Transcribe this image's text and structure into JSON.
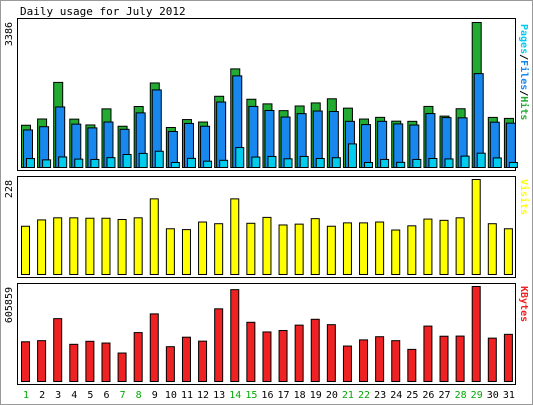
{
  "chart_data": [
    {
      "type": "bar",
      "title": "Daily usage for July 2012",
      "categories": [
        "1",
        "2",
        "3",
        "4",
        "5",
        "6",
        "7",
        "8",
        "9",
        "10",
        "11",
        "12",
        "13",
        "14",
        "15",
        "16",
        "17",
        "18",
        "19",
        "20",
        "21",
        "22",
        "23",
        "24",
        "25",
        "26",
        "27",
        "28",
        "29",
        "30",
        "31"
      ],
      "weekend_days": [
        "1",
        "7",
        "8",
        "14",
        "15",
        "21",
        "22",
        "28",
        "29"
      ],
      "y_tick_label": "3386",
      "ylim": [
        0,
        3386
      ],
      "right_label": {
        "parts": [
          "Pages",
          "Files",
          "Hits"
        ],
        "separator": "/"
      },
      "series": [
        {
          "name": "Hits",
          "color": "#22aa33",
          "values": [
            1003,
            1148,
            1997,
            1145,
            1010,
            1383,
            980,
            1438,
            1984,
            951,
            1135,
            1078,
            1675,
            2310,
            1606,
            1499,
            1342,
            1450,
            1521,
            1617,
            1400,
            1147,
            1186,
            1098,
            1094,
            1440,
            1215,
            1386,
            3386,
            1185,
            1162
          ]
        },
        {
          "name": "Files",
          "color": "#1888ee",
          "values": [
            894,
            969,
            1427,
            1029,
            942,
            1078,
            909,
            1290,
            1822,
            858,
            1045,
            980,
            1542,
            2148,
            1440,
            1345,
            1193,
            1272,
            1333,
            1322,
            1094,
            1018,
            1094,
            1034,
            1008,
            1274,
            1180,
            1175,
            2200,
            1074,
            1052
          ]
        },
        {
          "name": "Pages",
          "color": "#00ccee",
          "values": [
            230,
            200,
            268,
            218,
            210,
            251,
            325,
            350,
            400,
            140,
            235,
            170,
            190,
            485,
            265,
            280,
            225,
            280,
            232,
            250,
            570,
            140,
            210,
            143,
            210,
            232,
            222,
            287,
            355,
            245,
            140
          ]
        }
      ]
    },
    {
      "type": "bar",
      "y_tick_label": "228",
      "ylim": [
        0,
        228
      ],
      "right_label": "Visits",
      "series": [
        {
          "name": "Visits",
          "color": "#ffff00",
          "values": [
            117,
            132,
            137,
            137,
            136,
            136,
            133,
            137,
            182,
            111,
            109,
            127,
            123,
            182,
            124,
            138,
            120,
            122,
            135,
            117,
            125,
            125,
            127,
            108,
            118,
            134,
            131,
            137,
            228,
            123,
            111
          ]
        }
      ]
    },
    {
      "type": "bar",
      "y_tick_label": "605859",
      "ylim": [
        0,
        605859
      ],
      "right_label": "KBytes",
      "series": [
        {
          "name": "KBytes",
          "color": "#ee2222",
          "values": [
            257000,
            264000,
            403000,
            241000,
            260000,
            249000,
            186000,
            315000,
            433000,
            226000,
            286000,
            261000,
            465000,
            586000,
            380000,
            319000,
            328000,
            362000,
            399000,
            365000,
            230000,
            269000,
            289000,
            264000,
            209000,
            356000,
            292000,
            293000,
            605859,
            280000,
            304000
          ]
        }
      ]
    }
  ]
}
